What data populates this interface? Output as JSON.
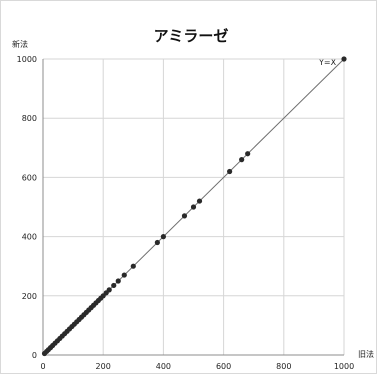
{
  "chart_data": {
    "type": "scatter",
    "title": "アミラーゼ",
    "ylabel": "新法",
    "xlabel": "旧法",
    "line_label": "Y=X",
    "xlim": [
      0,
      1000
    ],
    "ylim": [
      0,
      1000
    ],
    "x_ticks": [
      "0",
      "200",
      "400",
      "600",
      "800",
      "1000"
    ],
    "y_ticks": [
      "0",
      "200",
      "400",
      "600",
      "800",
      "1000"
    ],
    "grid": true,
    "series": [
      {
        "x": [
          5,
          12,
          18,
          25,
          32,
          40,
          48,
          56,
          64,
          72,
          80,
          88,
          96,
          104,
          112,
          120,
          128,
          136,
          144,
          152,
          160,
          168,
          176,
          184,
          192,
          200,
          210,
          220,
          235,
          250,
          270,
          300,
          380,
          400,
          470,
          500,
          520,
          620,
          660,
          680,
          1000
        ],
        "y": [
          5,
          12,
          18,
          25,
          32,
          40,
          48,
          56,
          64,
          72,
          80,
          88,
          96,
          104,
          112,
          120,
          128,
          136,
          144,
          152,
          160,
          168,
          176,
          184,
          192,
          200,
          210,
          220,
          235,
          250,
          270,
          300,
          380,
          400,
          470,
          500,
          520,
          620,
          660,
          680,
          1000
        ]
      }
    ]
  }
}
